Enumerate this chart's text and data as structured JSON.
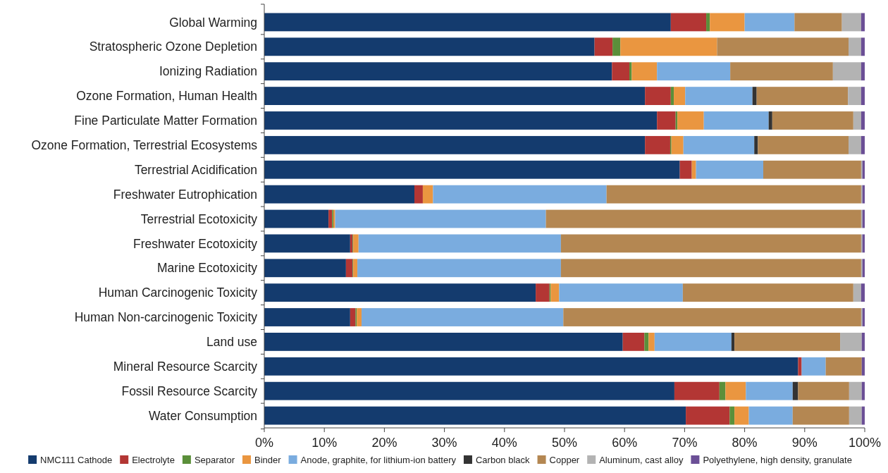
{
  "chart_data": {
    "type": "bar",
    "orientation": "horizontal",
    "stacked": true,
    "legend": "bottom",
    "grid": false,
    "categories": [
      "Global Warming",
      "Stratospheric Ozone Depletion",
      "Ionizing Radiation",
      "Ozone Formation, Human Health",
      "Fine Particulate Matter Formation",
      "Ozone Formation, Terrestrial Ecosystems",
      "Terrestrial Acidification",
      "Freshwater Eutrophication",
      "Terrestrial Ecotoxicity",
      "Freshwater Ecotoxicity",
      "Marine Ecotoxicity",
      "Human Carcinogenic Toxicity",
      "Human Non-carcinogenic Toxicity",
      "Land use",
      "Mineral Resource Scarcity",
      "Fossil Resource Scarcity",
      "Water Consumption"
    ],
    "xlim": [
      0,
      100
    ],
    "xticks": [
      {
        "value": 0,
        "label": "0%"
      },
      {
        "value": 10,
        "label": "10%"
      },
      {
        "value": 20,
        "label": "20%"
      },
      {
        "value": 30,
        "label": "30%"
      },
      {
        "value": 40,
        "label": "40%"
      },
      {
        "value": 50,
        "label": "50%"
      },
      {
        "value": 60,
        "label": "60%"
      },
      {
        "value": 70,
        "label": "70%"
      },
      {
        "value": 80,
        "label": "80%"
      },
      {
        "value": 90,
        "label": "90%"
      },
      {
        "value": 100,
        "label": "100%"
      }
    ],
    "series": [
      {
        "name": "NMC111 Cathode",
        "color": "#143b6e",
        "values": [
          67.7,
          55.0,
          57.9,
          63.4,
          65.4,
          63.4,
          69.2,
          25.0,
          10.7,
          14.3,
          13.6,
          45.2,
          14.3,
          59.7,
          88.9,
          68.3,
          70.2
        ]
      },
      {
        "name": "Electrolyte",
        "color": "#b33634",
        "values": [
          5.9,
          3.0,
          2.9,
          4.3,
          3.1,
          4.2,
          2.0,
          1.4,
          0.6,
          0.4,
          1.1,
          2.3,
          0.9,
          3.6,
          0.6,
          7.5,
          7.3
        ]
      },
      {
        "name": "Separator",
        "color": "#5b8f3a",
        "values": [
          0.6,
          1.3,
          0.4,
          0.5,
          0.3,
          0.2,
          null,
          null,
          0.2,
          0.1,
          0.1,
          0.2,
          0.2,
          0.7,
          0,
          1.0,
          0.8
        ]
      },
      {
        "name": "Binder",
        "color": "#ea9640",
        "values": [
          5.8,
          16.1,
          4.2,
          1.9,
          4.4,
          2.0,
          0.7,
          1.7,
          0.3,
          0.9,
          0.7,
          1.4,
          0.8,
          1.0,
          0,
          3.4,
          2.4
        ]
      },
      {
        "name": "Anode, graphite, for lithium-ion battery",
        "color": "#7aacdf",
        "values": [
          8.3,
          0,
          12.2,
          11.2,
          10.8,
          11.8,
          11.2,
          28.9,
          35.1,
          33.7,
          33.9,
          20.6,
          33.6,
          12.8,
          4.0,
          7.8,
          7.3
        ]
      },
      {
        "name": "Carbon black",
        "color": "#333333",
        "values": [
          0,
          0,
          0,
          0.7,
          0.6,
          0.6,
          0,
          0,
          0,
          0,
          0,
          0,
          0,
          0.5,
          0,
          0.9,
          0
        ]
      },
      {
        "name": "Copper",
        "color": "#b48752",
        "values": [
          7.9,
          21.9,
          17.1,
          15.2,
          13.5,
          15.1,
          16.3,
          42.4,
          52.5,
          50.0,
          50.0,
          28.4,
          49.6,
          17.6,
          6.0,
          8.5,
          9.4
        ]
      },
      {
        "name": "Aluminum, cast alloy",
        "color": "#b3b3b3",
        "values": [
          3.2,
          2.1,
          4.7,
          2.2,
          1.3,
          2.1,
          0.2,
          0.2,
          0.2,
          0.2,
          0.2,
          1.3,
          0.2,
          3.6,
          0,
          2.1,
          2.1
        ]
      },
      {
        "name": "Polyethylene, high density, granulate",
        "color": "#6b4f96",
        "values": [
          0.6,
          0.6,
          0.6,
          0.6,
          0.6,
          0.6,
          0.4,
          0.4,
          0.4,
          0.4,
          0.4,
          0.6,
          0.4,
          0.5,
          0.5,
          0.5,
          0.5
        ]
      }
    ]
  }
}
